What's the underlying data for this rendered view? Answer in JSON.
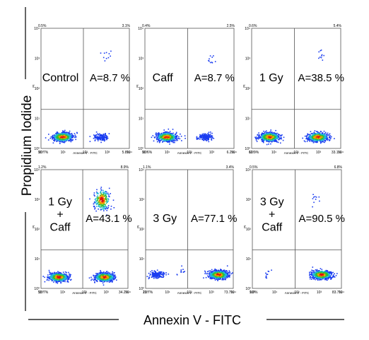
{
  "figure": {
    "y_axis_title": "Propidium Iodide",
    "x_axis_title": "Annexin V - FITC"
  },
  "chart_data": [
    {
      "type": "scatter",
      "panel": "control",
      "condition": "Control",
      "annexin_label": "A=8.7 %",
      "quadrants": {
        "ul": "0.5%",
        "ur": "3.1%",
        "ll": "90.7%",
        "lr": "5.8%"
      },
      "xlabel": "Annexin V - FITC",
      "ylabel": "PI",
      "x_ticks": [
        "10⁰",
        "10¹",
        "10²",
        "10³",
        "10⁴"
      ],
      "y_ticks": [
        "10⁰",
        "10¹",
        "10²",
        "10³",
        "10⁴"
      ],
      "xlim": [
        1,
        10000
      ],
      "ylim": [
        1,
        10000
      ],
      "log_scale": true,
      "populations": [
        {
          "x": 9,
          "y": 2.5,
          "size": "large"
        },
        {
          "x": 500,
          "y": 2.5,
          "size": "small"
        },
        {
          "x": 900,
          "y": 1500,
          "size": "sparse"
        }
      ]
    },
    {
      "type": "scatter",
      "panel": "caff",
      "condition": "Caff",
      "annexin_label": "A=8.7 %",
      "quadrants": {
        "ul": "0.4%",
        "ur": "2.5%",
        "ll": "90.6%",
        "lr": "6.2%"
      },
      "xlabel": "Annexin V - FITC",
      "ylabel": "PI",
      "x_ticks": [
        "10⁰",
        "10¹",
        "10²",
        "10³",
        "10⁴"
      ],
      "y_ticks": [
        "10⁰",
        "10¹",
        "10²",
        "10³",
        "10⁴"
      ],
      "xlim": [
        1,
        10000
      ],
      "ylim": [
        1,
        10000
      ],
      "log_scale": true,
      "populations": [
        {
          "x": 9,
          "y": 2.5,
          "size": "large"
        },
        {
          "x": 500,
          "y": 2.5,
          "size": "small"
        },
        {
          "x": 900,
          "y": 900,
          "size": "sparse"
        }
      ]
    },
    {
      "type": "scatter",
      "panel": "1gy",
      "condition": "1 Gy",
      "annexin_label": "A=38.5 %",
      "quadrants": {
        "ul": "0.6%",
        "ur": "5.4%",
        "ll": "60.9%",
        "lr": "33.1%"
      },
      "xlabel": "Annexin V - FITC",
      "ylabel": "PI",
      "x_ticks": [
        "10⁰",
        "10¹",
        "10²",
        "10³",
        "10⁴"
      ],
      "y_ticks": [
        "10⁰",
        "10¹",
        "10²",
        "10³",
        "10⁴"
      ],
      "xlim": [
        1,
        10000
      ],
      "ylim": [
        1,
        10000
      ],
      "log_scale": true,
      "populations": [
        {
          "x": 6,
          "y": 2.5,
          "size": "large"
        },
        {
          "x": 900,
          "y": 2.5,
          "size": "large"
        },
        {
          "x": 1000,
          "y": 1500,
          "size": "sparse"
        }
      ]
    },
    {
      "type": "scatter",
      "panel": "1gy-caff",
      "condition": "1 Gy + Caff",
      "annexin_label": "A=43.1 %",
      "quadrants": {
        "ul": "1.2%",
        "ur": "8.9%",
        "ll": "55.7%",
        "lr": "34.2%"
      },
      "xlabel": "Annexin V - FITC",
      "ylabel": "PI",
      "x_ticks": [
        "10⁰",
        "10¹",
        "10²",
        "10³",
        "10⁴"
      ],
      "y_ticks": [
        "10⁰",
        "10¹",
        "10²",
        "10³",
        "10⁴"
      ],
      "xlim": [
        1,
        10000
      ],
      "ylim": [
        1,
        10000
      ],
      "log_scale": true,
      "populations": [
        {
          "x": 6,
          "y": 2.5,
          "size": "large"
        },
        {
          "x": 800,
          "y": 2.5,
          "size": "large"
        },
        {
          "x": 600,
          "y": 1000,
          "size": "medium"
        }
      ]
    },
    {
      "type": "scatter",
      "panel": "3gy",
      "condition": "3 Gy",
      "annexin_label": "A=77.1 %",
      "quadrants": {
        "ul": "1.1%",
        "ur": "3.4%",
        "ll": "21.7%",
        "lr": "73.7%"
      },
      "xlabel": "Annexin V - FITC",
      "ylabel": "PI",
      "x_ticks": [
        "10⁰",
        "10¹",
        "10²",
        "10³",
        "10⁴"
      ],
      "y_ticks": [
        "10⁰",
        "10¹",
        "10²",
        "10³",
        "10⁴"
      ],
      "xlim": [
        1,
        10000
      ],
      "ylim": [
        1,
        10000
      ],
      "log_scale": true,
      "populations": [
        {
          "x": 3,
          "y": 3,
          "size": "small"
        },
        {
          "x": 40,
          "y": 4,
          "size": "sparse"
        },
        {
          "x": 2000,
          "y": 3,
          "size": "large"
        }
      ]
    },
    {
      "type": "scatter",
      "panel": "3gy-caff",
      "condition": "3 Gy + Caff",
      "annexin_label": "A=90.5 %",
      "quadrants": {
        "ul": "0.5%",
        "ur": "6.8%",
        "ll": "9.0%",
        "lr": "83.7%"
      },
      "xlabel": "Annexin V - FITC",
      "ylabel": "PI",
      "x_ticks": [
        "10⁰",
        "10¹",
        "10²",
        "10³",
        "10⁴"
      ],
      "y_ticks": [
        "10⁰",
        "10¹",
        "10²",
        "10³",
        "10⁴"
      ],
      "xlim": [
        1,
        10000
      ],
      "ylim": [
        1,
        10000
      ],
      "log_scale": true,
      "populations": [
        {
          "x": 4,
          "y": 3,
          "size": "sparse"
        },
        {
          "x": 1200,
          "y": 3,
          "size": "large"
        },
        {
          "x": 700,
          "y": 1200,
          "size": "sparse"
        }
      ]
    }
  ]
}
